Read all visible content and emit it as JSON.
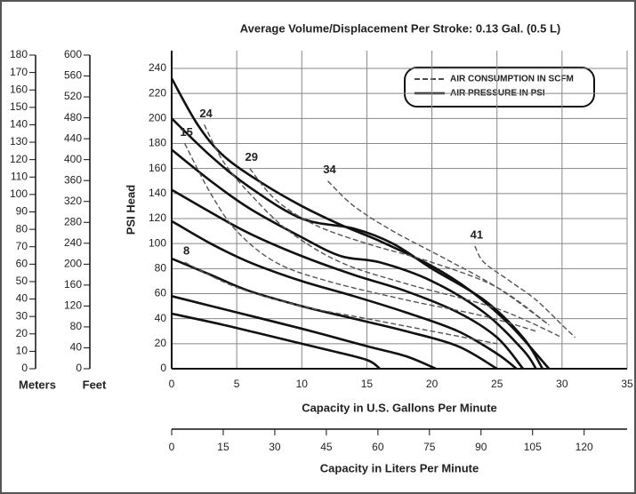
{
  "chart_data": {
    "type": "line",
    "title": "Average Volume/Displacement Per Stroke: 0.13 Gal. (0.5 L)",
    "xlabel": "Capacity in U.S. Gallons Per Minute",
    "ylabel": "PSI Head",
    "xlim": [
      0,
      35
    ],
    "xticks": [
      0,
      5,
      10,
      15,
      20,
      25,
      30,
      35
    ],
    "ylim": [
      0,
      240
    ],
    "yticks": [
      0,
      20,
      40,
      60,
      80,
      100,
      120,
      140,
      160,
      180,
      200,
      220,
      240
    ],
    "grid": true,
    "liters_axis": {
      "label": "Capacity in Liters Per Minute",
      "xlim": [
        0,
        132.5
      ],
      "xticks": [
        0,
        15,
        30,
        45,
        60,
        75,
        90,
        105,
        120
      ]
    },
    "meters_axis": {
      "label": "Meters",
      "ylim": [
        0,
        180
      ],
      "yticks": [
        0,
        10,
        20,
        30,
        40,
        50,
        60,
        70,
        80,
        90,
        100,
        110,
        120,
        130,
        140,
        150,
        160,
        170,
        180
      ]
    },
    "feet_axis": {
      "label": "Feet",
      "ylim": [
        0,
        600
      ],
      "yticks": [
        0,
        40,
        80,
        120,
        160,
        200,
        240,
        280,
        320,
        360,
        400,
        440,
        480,
        520,
        560,
        600
      ]
    },
    "legend": [
      {
        "label": "AIR CONSUMPTION IN SCFM",
        "style": "dashed"
      },
      {
        "label": "AIR PRESSURE IN PSI",
        "style": "solid"
      }
    ],
    "series": [
      {
        "style": "solid",
        "color": "#111111",
        "x": [
          0,
          2,
          4,
          7,
          10,
          13,
          16,
          20,
          23,
          26,
          29
        ],
        "values": [
          232,
          195,
          170,
          148,
          130,
          115,
          102,
          82,
          62,
          35,
          0
        ]
      },
      {
        "style": "solid",
        "color": "#111111",
        "x": [
          0,
          3,
          6,
          10,
          14,
          17,
          20,
          24,
          27,
          28.5
        ],
        "values": [
          200,
          170,
          145,
          120,
          112,
          100,
          80,
          55,
          25,
          0
        ]
      },
      {
        "style": "solid",
        "color": "#111111",
        "x": [
          0,
          3,
          6,
          10,
          13,
          16,
          20,
          24,
          27,
          28
        ],
        "values": [
          175,
          150,
          128,
          105,
          90,
          85,
          70,
          45,
          15,
          0
        ]
      },
      {
        "style": "solid",
        "color": "#111111",
        "x": [
          0,
          3,
          6,
          10,
          14,
          18,
          22,
          25,
          27
        ],
        "values": [
          143,
          125,
          108,
          90,
          75,
          62,
          45,
          25,
          0
        ]
      },
      {
        "style": "solid",
        "color": "#111111",
        "x": [
          0,
          3,
          6,
          10,
          14,
          18,
          22,
          25,
          26.5
        ],
        "values": [
          118,
          100,
          85,
          70,
          58,
          45,
          30,
          12,
          0
        ]
      },
      {
        "style": "solid",
        "color": "#111111",
        "x": [
          0,
          3,
          6,
          10,
          14,
          18,
          22,
          25
        ],
        "values": [
          88,
          75,
          62,
          50,
          40,
          30,
          18,
          0
        ]
      },
      {
        "style": "solid",
        "color": "#111111",
        "x": [
          0,
          5,
          10,
          15,
          18,
          20.3
        ],
        "values": [
          58,
          45,
          32,
          18,
          10,
          0
        ]
      },
      {
        "style": "solid",
        "color": "#111111",
        "x": [
          0,
          4,
          8,
          12,
          15,
          16
        ],
        "values": [
          44,
          35,
          25,
          15,
          7,
          0
        ]
      },
      {
        "style": "dashed",
        "name": "8",
        "color": "#555555",
        "x": [
          1,
          5,
          10,
          15,
          20,
          25
        ],
        "values": [
          85,
          65,
          50,
          40,
          30,
          20
        ]
      },
      {
        "style": "dashed",
        "name": "15",
        "color": "#555555",
        "x": [
          1,
          3,
          5,
          8,
          12,
          18,
          24,
          28
        ],
        "values": [
          180,
          140,
          110,
          85,
          70,
          55,
          42,
          30
        ]
      },
      {
        "style": "dashed",
        "name": "24",
        "color": "#555555",
        "x": [
          2.5,
          4,
          6,
          9,
          13,
          18,
          25,
          30
        ],
        "values": [
          195,
          165,
          140,
          110,
          85,
          68,
          48,
          25
        ]
      },
      {
        "style": "dashed",
        "name": "29",
        "color": "#555555",
        "x": [
          6,
          8,
          11,
          15,
          20,
          25,
          29
        ],
        "values": [
          160,
          135,
          115,
          100,
          85,
          65,
          35
        ]
      },
      {
        "style": "dashed",
        "name": "34",
        "color": "#555555",
        "x": [
          12,
          14,
          17,
          21,
          25,
          29
        ],
        "values": [
          150,
          130,
          110,
          88,
          65,
          35
        ]
      },
      {
        "style": "dashed",
        "name": "41",
        "color": "#555555",
        "x": [
          23.3,
          24,
          26,
          28,
          30,
          31
        ],
        "values": [
          98,
          85,
          70,
          55,
          35,
          25
        ]
      }
    ]
  }
}
